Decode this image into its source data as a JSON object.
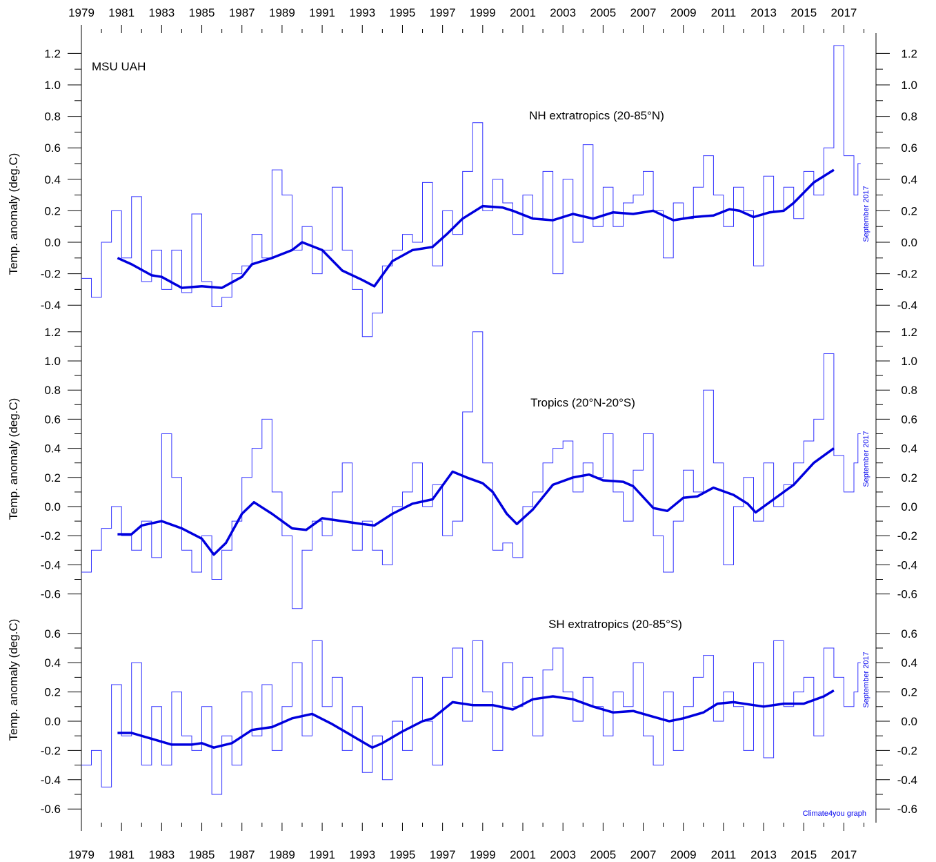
{
  "chart_data": {
    "type": "line",
    "source_label": "MSU UAH",
    "credit": "Climate4you graph",
    "x_ticks": [
      1979,
      1981,
      1983,
      1985,
      1987,
      1989,
      1991,
      1993,
      1995,
      1997,
      1999,
      2001,
      2003,
      2005,
      2007,
      2009,
      2011,
      2013,
      2015,
      2017
    ],
    "xlim": [
      1979,
      2018.6
    ],
    "panels": [
      {
        "title": "NH extratropics (20-85°N)",
        "ylabel": "Temp. anomaly (deg.C)",
        "ylim": [
          -0.4,
          1.2
        ],
        "y_ticks": [
          "-0.4",
          "-0.2",
          "0.0",
          "0.2",
          "0.4",
          "0.6",
          "0.8",
          "1.0",
          "1.2"
        ],
        "end_label": "September 2017",
        "series": [
          {
            "style": "monthly",
            "x": [
              1979.0,
              1979.5,
              1980.0,
              1980.5,
              1981.0,
              1981.5,
              1982.0,
              1982.5,
              1983.0,
              1983.5,
              1984.0,
              1984.5,
              1985.0,
              1985.5,
              1986.0,
              1986.5,
              1987.0,
              1987.5,
              1988.0,
              1988.5,
              1989.0,
              1989.5,
              1990.0,
              1990.5,
              1991.0,
              1991.5,
              1992.0,
              1992.5,
              1993.0,
              1993.5,
              1994.0,
              1994.5,
              1995.0,
              1995.5,
              1996.0,
              1996.5,
              1997.0,
              1997.5,
              1998.0,
              1998.5,
              1999.0,
              1999.5,
              2000.0,
              2000.5,
              2001.0,
              2001.5,
              2002.0,
              2002.5,
              2003.0,
              2003.5,
              2004.0,
              2004.5,
              2005.0,
              2005.5,
              2006.0,
              2006.5,
              2007.0,
              2007.5,
              2008.0,
              2008.5,
              2009.0,
              2009.5,
              2010.0,
              2010.5,
              2011.0,
              2011.5,
              2012.0,
              2012.5,
              2013.0,
              2013.5,
              2014.0,
              2014.5,
              2015.0,
              2015.5,
              2016.0,
              2016.5,
              2017.0,
              2017.5,
              2017.7
            ],
            "y": [
              -0.23,
              -0.35,
              0.0,
              0.2,
              -0.1,
              0.29,
              -0.25,
              -0.05,
              -0.3,
              -0.05,
              -0.32,
              0.18,
              -0.25,
              -0.41,
              -0.35,
              -0.2,
              -0.15,
              0.05,
              -0.1,
              0.46,
              0.3,
              -0.05,
              0.1,
              -0.2,
              -0.05,
              0.35,
              -0.05,
              -0.3,
              -0.6,
              -0.45,
              -0.15,
              -0.05,
              0.05,
              0.0,
              0.38,
              -0.15,
              0.2,
              0.05,
              0.45,
              0.76,
              0.2,
              0.4,
              0.25,
              0.05,
              0.3,
              0.15,
              0.45,
              -0.2,
              0.4,
              0.0,
              0.62,
              0.1,
              0.35,
              0.1,
              0.25,
              0.3,
              0.45,
              0.2,
              -0.1,
              0.25,
              0.15,
              0.35,
              0.55,
              0.3,
              0.1,
              0.35,
              0.2,
              -0.15,
              0.42,
              0.2,
              0.35,
              0.15,
              0.45,
              0.3,
              0.6,
              1.25,
              0.55,
              0.3,
              0.5
            ]
          },
          {
            "style": "running-mean",
            "x": [
              1980.8,
              1981.5,
              1982.5,
              1983.0,
              1984.0,
              1985.0,
              1986.0,
              1987.0,
              1987.5,
              1988.5,
              1989.5,
              1990.0,
              1991.0,
              1992.0,
              1993.0,
              1993.6,
              1994.5,
              1995.5,
              1996.5,
              1997.2,
              1998.0,
              1999.0,
              2000.0,
              2000.5,
              2001.5,
              2002.5,
              2003.5,
              2004.5,
              2005.5,
              2006.5,
              2007.5,
              2008.5,
              2009.5,
              2010.5,
              2011.3,
              2011.8,
              2012.5,
              2013.3,
              2014.0,
              2014.5,
              2015.5,
              2016.5
            ],
            "y": [
              -0.1,
              -0.14,
              -0.21,
              -0.22,
              -0.29,
              -0.28,
              -0.29,
              -0.22,
              -0.14,
              -0.1,
              -0.05,
              0.0,
              -0.05,
              -0.18,
              -0.24,
              -0.28,
              -0.12,
              -0.05,
              -0.03,
              0.05,
              0.15,
              0.23,
              0.22,
              0.2,
              0.15,
              0.14,
              0.18,
              0.15,
              0.19,
              0.18,
              0.2,
              0.14,
              0.16,
              0.17,
              0.21,
              0.2,
              0.16,
              0.19,
              0.2,
              0.25,
              0.38,
              0.46
            ]
          }
        ]
      },
      {
        "title": "Tropics (20°N-20°S)",
        "ylabel": "Temp. anomaly (deg.C)",
        "ylim": [
          -0.6,
          1.2
        ],
        "y_ticks": [
          "-0.6",
          "-0.4",
          "-0.2",
          "0.0",
          "0.2",
          "0.4",
          "0.6",
          "0.8",
          "1.0",
          "1.2"
        ],
        "end_label": "September 2017",
        "series": [
          {
            "style": "monthly",
            "x": [
              1979.0,
              1979.5,
              1980.0,
              1980.5,
              1981.0,
              1981.5,
              1982.0,
              1982.5,
              1983.0,
              1983.5,
              1984.0,
              1984.5,
              1985.0,
              1985.5,
              1986.0,
              1986.5,
              1987.0,
              1987.5,
              1988.0,
              1988.5,
              1989.0,
              1989.5,
              1990.0,
              1990.5,
              1991.0,
              1991.5,
              1992.0,
              1992.5,
              1993.0,
              1993.5,
              1994.0,
              1994.5,
              1995.0,
              1995.5,
              1996.0,
              1996.5,
              1997.0,
              1997.5,
              1998.0,
              1998.5,
              1999.0,
              1999.5,
              2000.0,
              2000.5,
              2001.0,
              2001.5,
              2002.0,
              2002.5,
              2003.0,
              2003.5,
              2004.0,
              2004.5,
              2005.0,
              2005.5,
              2006.0,
              2006.5,
              2007.0,
              2007.5,
              2008.0,
              2008.5,
              2009.0,
              2009.5,
              2010.0,
              2010.5,
              2011.0,
              2011.5,
              2012.0,
              2012.5,
              2013.0,
              2013.5,
              2014.0,
              2014.5,
              2015.0,
              2015.5,
              2016.0,
              2016.5,
              2017.0,
              2017.5,
              2017.7
            ],
            "y": [
              -0.45,
              -0.3,
              -0.15,
              0.0,
              -0.2,
              -0.3,
              -0.1,
              -0.35,
              0.5,
              0.2,
              -0.3,
              -0.45,
              -0.2,
              -0.5,
              -0.3,
              -0.1,
              0.2,
              0.4,
              0.6,
              0.1,
              -0.2,
              -0.7,
              -0.3,
              -0.1,
              -0.2,
              0.1,
              0.3,
              -0.3,
              -0.1,
              -0.3,
              -0.4,
              0.0,
              0.1,
              0.3,
              0.0,
              0.15,
              -0.2,
              -0.1,
              0.65,
              1.2,
              0.3,
              -0.3,
              -0.25,
              -0.35,
              0.0,
              0.1,
              0.3,
              0.4,
              0.45,
              0.1,
              0.3,
              0.2,
              0.5,
              0.1,
              -0.1,
              0.25,
              0.5,
              -0.2,
              -0.45,
              -0.1,
              0.25,
              0.1,
              0.8,
              0.3,
              -0.4,
              0.0,
              0.2,
              -0.1,
              0.3,
              0.0,
              0.15,
              0.3,
              0.45,
              0.6,
              1.05,
              0.35,
              0.1,
              0.3,
              0.5
            ]
          },
          {
            "style": "running-mean",
            "x": [
              1980.8,
              1981.5,
              1982.0,
              1983.0,
              1984.0,
              1985.0,
              1985.6,
              1986.2,
              1987.0,
              1987.6,
              1988.5,
              1989.5,
              1990.2,
              1991.0,
              1992.0,
              1993.0,
              1993.6,
              1994.5,
              1995.5,
              1996.5,
              1997.5,
              1998.2,
              1999.0,
              1999.5,
              2000.2,
              2000.7,
              2001.5,
              2002.5,
              2003.5,
              2004.3,
              2005.0,
              2006.0,
              2006.5,
              2007.5,
              2008.2,
              2009.0,
              2009.7,
              2010.5,
              2011.5,
              2012.2,
              2012.6,
              2013.5,
              2014.5,
              2015.5,
              2016.5
            ],
            "y": [
              -0.19,
              -0.19,
              -0.13,
              -0.1,
              -0.15,
              -0.22,
              -0.33,
              -0.25,
              -0.05,
              0.03,
              -0.05,
              -0.15,
              -0.16,
              -0.08,
              -0.1,
              -0.12,
              -0.13,
              -0.05,
              0.02,
              0.05,
              0.24,
              0.2,
              0.16,
              0.1,
              -0.05,
              -0.12,
              -0.02,
              0.15,
              0.2,
              0.22,
              0.18,
              0.17,
              0.14,
              -0.01,
              -0.03,
              0.06,
              0.07,
              0.13,
              0.08,
              0.02,
              -0.04,
              0.05,
              0.15,
              0.3,
              0.4
            ]
          }
        ]
      },
      {
        "title": "SH extratropics (20-85°S)",
        "ylabel": "Temp. anomaly (deg.C)",
        "ylim": [
          -0.6,
          0.6
        ],
        "y_ticks": [
          "-0.6",
          "-0.4",
          "-0.2",
          "0.0",
          "0.2",
          "0.4",
          "0.6"
        ],
        "end_label": "September 2017",
        "series": [
          {
            "style": "monthly",
            "x": [
              1979.0,
              1979.5,
              1980.0,
              1980.5,
              1981.0,
              1981.5,
              1982.0,
              1982.5,
              1983.0,
              1983.5,
              1984.0,
              1984.5,
              1985.0,
              1985.5,
              1986.0,
              1986.5,
              1987.0,
              1987.5,
              1988.0,
              1988.5,
              1989.0,
              1989.5,
              1990.0,
              1990.5,
              1991.0,
              1991.5,
              1992.0,
              1992.5,
              1993.0,
              1993.5,
              1994.0,
              1994.5,
              1995.0,
              1995.5,
              1996.0,
              1996.5,
              1997.0,
              1997.5,
              1998.0,
              1998.5,
              1999.0,
              1999.5,
              2000.0,
              2000.5,
              2001.0,
              2001.5,
              2002.0,
              2002.5,
              2003.0,
              2003.5,
              2004.0,
              2004.5,
              2005.0,
              2005.5,
              2006.0,
              2006.5,
              2007.0,
              2007.5,
              2008.0,
              2008.5,
              2009.0,
              2009.5,
              2010.0,
              2010.5,
              2011.0,
              2011.5,
              2012.0,
              2012.5,
              2013.0,
              2013.5,
              2014.0,
              2014.5,
              2015.0,
              2015.5,
              2016.0,
              2016.5,
              2017.0,
              2017.5,
              2017.7
            ],
            "y": [
              -0.3,
              -0.2,
              -0.45,
              0.25,
              -0.1,
              0.4,
              -0.3,
              0.1,
              -0.3,
              0.2,
              -0.1,
              -0.2,
              0.1,
              -0.5,
              -0.1,
              -0.3,
              0.2,
              -0.1,
              0.25,
              -0.2,
              0.1,
              0.4,
              -0.1,
              0.55,
              0.1,
              0.3,
              -0.2,
              0.1,
              -0.35,
              -0.1,
              -0.4,
              0.0,
              -0.2,
              0.3,
              0.0,
              -0.3,
              0.3,
              0.5,
              0.0,
              0.55,
              0.2,
              -0.2,
              0.4,
              0.1,
              0.3,
              -0.1,
              0.35,
              0.5,
              0.2,
              0.0,
              0.3,
              0.1,
              -0.1,
              0.2,
              0.1,
              0.4,
              -0.1,
              -0.3,
              0.2,
              -0.2,
              0.1,
              0.3,
              0.45,
              0.0,
              0.2,
              0.1,
              -0.2,
              0.4,
              -0.25,
              0.55,
              0.1,
              0.2,
              0.3,
              -0.1,
              0.5,
              0.3,
              0.1,
              0.2,
              0.4
            ]
          },
          {
            "style": "running-mean",
            "x": [
              1980.8,
              1981.5,
              1982.5,
              1983.5,
              1984.5,
              1985.0,
              1985.6,
              1986.5,
              1987.5,
              1988.5,
              1989.5,
              1990.5,
              1991.5,
              1992.5,
              1993.5,
              1994.0,
              1995.0,
              1996.0,
              1996.5,
              1997.5,
              1998.5,
              1999.5,
              2000.5,
              2001.5,
              2002.5,
              2003.5,
              2004.5,
              2005.5,
              2006.5,
              2007.5,
              2008.3,
              2009.0,
              2010.0,
              2010.7,
              2011.5,
              2012.5,
              2013.0,
              2014.0,
              2015.0,
              2016.0,
              2016.5
            ],
            "y": [
              -0.08,
              -0.08,
              -0.12,
              -0.16,
              -0.16,
              -0.15,
              -0.18,
              -0.15,
              -0.06,
              -0.04,
              0.02,
              0.05,
              -0.02,
              -0.1,
              -0.18,
              -0.15,
              -0.07,
              0.0,
              0.02,
              0.13,
              0.11,
              0.11,
              0.08,
              0.15,
              0.17,
              0.15,
              0.1,
              0.06,
              0.07,
              0.03,
              0.0,
              0.02,
              0.06,
              0.12,
              0.13,
              0.11,
              0.1,
              0.12,
              0.12,
              0.17,
              0.21
            ]
          }
        ]
      }
    ]
  }
}
